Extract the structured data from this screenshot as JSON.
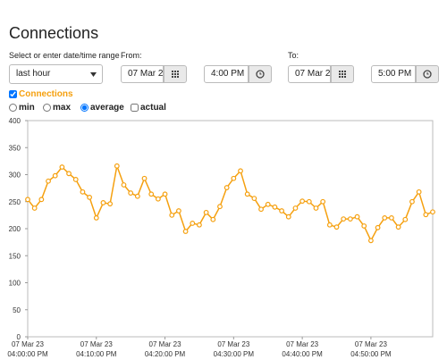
{
  "ui": {
    "title": "Connections",
    "range_label": "Select or enter date/time range",
    "from_label": "From:",
    "to_label": "To:",
    "range_select": "last hour",
    "from_date": "07 Mar 2",
    "from_time": "4:00 PM",
    "to_date": "07 Mar 2",
    "to_time": "5:00 PM",
    "series_toggle": "Connections",
    "modes": [
      "min",
      "max",
      "average"
    ],
    "selected_mode": "average",
    "actual": "actual"
  },
  "chart_data": {
    "type": "line",
    "color": "#f5a00f",
    "ylim": [
      0,
      400
    ],
    "yticks": [
      0,
      50,
      100,
      150,
      200,
      250,
      300,
      350,
      400
    ],
    "xlim": [
      "2023-03-07T16:00",
      "2023-03-07T16:59"
    ],
    "xticks": [
      {
        "value": "2023-03-07T16:00",
        "label": [
          "07 Mar 23",
          "04:00:00 PM"
        ]
      },
      {
        "value": "2023-03-07T16:10",
        "label": [
          "07 Mar 23",
          "04:10:00 PM"
        ]
      },
      {
        "value": "2023-03-07T16:20",
        "label": [
          "07 Mar 23",
          "04:20:00 PM"
        ]
      },
      {
        "value": "2023-03-07T16:30",
        "label": [
          "07 Mar 23",
          "04:30:00 PM"
        ]
      },
      {
        "value": "2023-03-07T16:40",
        "label": [
          "07 Mar 23",
          "04:40:00 PM"
        ]
      },
      {
        "value": "2023-03-07T16:50",
        "label": [
          "07 Mar 23",
          "04:50:00 PM"
        ]
      }
    ],
    "x": [
      "2023-03-07T16:00",
      "2023-03-07T16:01",
      "2023-03-07T16:02",
      "2023-03-07T16:03",
      "2023-03-07T16:04",
      "2023-03-07T16:05",
      "2023-03-07T16:06",
      "2023-03-07T16:07",
      "2023-03-07T16:08",
      "2023-03-07T16:09",
      "2023-03-07T16:10",
      "2023-03-07T16:11",
      "2023-03-07T16:12",
      "2023-03-07T16:13",
      "2023-03-07T16:14",
      "2023-03-07T16:15",
      "2023-03-07T16:16",
      "2023-03-07T16:17",
      "2023-03-07T16:18",
      "2023-03-07T16:19",
      "2023-03-07T16:20",
      "2023-03-07T16:21",
      "2023-03-07T16:22",
      "2023-03-07T16:23",
      "2023-03-07T16:24",
      "2023-03-07T16:25",
      "2023-03-07T16:26",
      "2023-03-07T16:27",
      "2023-03-07T16:28",
      "2023-03-07T16:29",
      "2023-03-07T16:30",
      "2023-03-07T16:31",
      "2023-03-07T16:32",
      "2023-03-07T16:33",
      "2023-03-07T16:34",
      "2023-03-07T16:35",
      "2023-03-07T16:36",
      "2023-03-07T16:37",
      "2023-03-07T16:38",
      "2023-03-07T16:39",
      "2023-03-07T16:40",
      "2023-03-07T16:41",
      "2023-03-07T16:42",
      "2023-03-07T16:43",
      "2023-03-07T16:44",
      "2023-03-07T16:45",
      "2023-03-07T16:46",
      "2023-03-07T16:47",
      "2023-03-07T16:48",
      "2023-03-07T16:49",
      "2023-03-07T16:50",
      "2023-03-07T16:51",
      "2023-03-07T16:52",
      "2023-03-07T16:53",
      "2023-03-07T16:54",
      "2023-03-07T16:55",
      "2023-03-07T16:56",
      "2023-03-07T16:57",
      "2023-03-07T16:58",
      "2023-03-07T16:59"
    ],
    "values": [
      254,
      238,
      254,
      288,
      298,
      314,
      302,
      291,
      268,
      258,
      220,
      248,
      246,
      316,
      281,
      266,
      260,
      293,
      264,
      255,
      264,
      225,
      233,
      195,
      210,
      207,
      230,
      217,
      241,
      276,
      293,
      307,
      264,
      256,
      236,
      245,
      240,
      233,
      222,
      238,
      251,
      250,
      238,
      250,
      207,
      203,
      218,
      218,
      222,
      205,
      178,
      202,
      220,
      220,
      203,
      217,
      250,
      268,
      226,
      231
    ]
  }
}
